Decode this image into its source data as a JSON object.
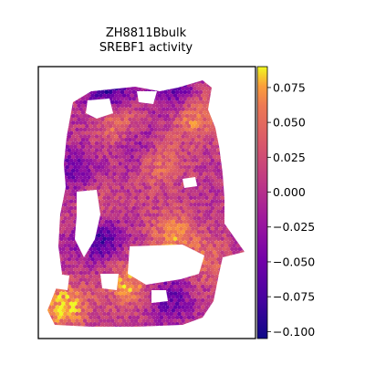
{
  "chart_data": {
    "type": "heatmap",
    "title": [
      "ZH8811Bbulk",
      "SREBF1 activity"
    ],
    "xlabel": "",
    "ylabel": "",
    "grid": false,
    "colormap": "plasma",
    "colorbar": {
      "vmin": -0.105,
      "vmax": 0.09,
      "ticks": [
        0.075,
        0.05,
        0.025,
        0.0,
        -0.025,
        -0.05,
        -0.075,
        -0.1
      ],
      "tick_labels": [
        "0.075",
        "0.050",
        "0.025",
        "0.000",
        "−0.025",
        "−0.050",
        "−0.075",
        "−0.100"
      ]
    },
    "description_values": {
      "hotspots": [
        {
          "x": 0.38,
          "y": 0.22,
          "value": 0.07
        },
        {
          "x": 0.72,
          "y": 0.18,
          "value": 0.06
        },
        {
          "x": 0.55,
          "y": 0.35,
          "value": 0.05
        },
        {
          "x": 0.28,
          "y": 0.55,
          "value": 0.05
        },
        {
          "x": 0.62,
          "y": 0.62,
          "value": 0.06
        },
        {
          "x": 0.42,
          "y": 0.8,
          "value": 0.07
        },
        {
          "x": 0.12,
          "y": 0.88,
          "value": 0.08
        },
        {
          "x": 0.78,
          "y": 0.72,
          "value": 0.04
        }
      ],
      "coldspots": [
        {
          "x": 0.32,
          "y": 0.08,
          "value": -0.09
        },
        {
          "x": 0.62,
          "y": 0.08,
          "value": -0.07
        },
        {
          "x": 0.28,
          "y": 0.62,
          "value": -0.1
        },
        {
          "x": 0.6,
          "y": 0.85,
          "value": -0.06
        },
        {
          "x": 0.45,
          "y": 0.28,
          "value": -0.06
        },
        {
          "x": 0.15,
          "y": 0.38,
          "value": -0.05
        }
      ]
    }
  }
}
